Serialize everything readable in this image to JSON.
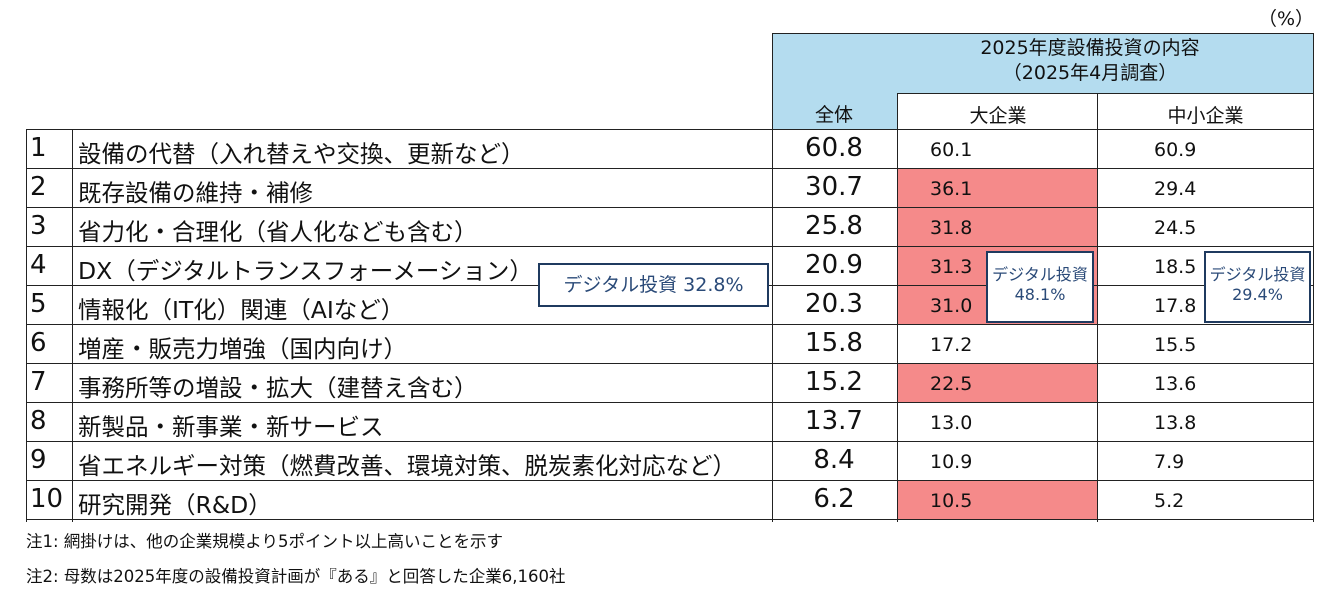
{
  "unit": "（%）",
  "header": {
    "title_line1": "2025年度設備投資の内容",
    "title_line2": "（2025年4月調査）",
    "col_total": "全体",
    "col_large": "大企業",
    "col_sme": "中小企業"
  },
  "rows": [
    {
      "no": "1",
      "label": "設備の代替（入れ替えや交換、更新など）",
      "total": "60.8",
      "large": "60.1",
      "sme": "60.9",
      "large_highlight": false
    },
    {
      "no": "2",
      "label": "既存設備の維持・補修",
      "total": "30.7",
      "large": "36.1",
      "sme": "29.4",
      "large_highlight": true
    },
    {
      "no": "3",
      "label": "省力化・合理化（省人化なども含む）",
      "total": "25.8",
      "large": "31.8",
      "sme": "24.5",
      "large_highlight": true
    },
    {
      "no": "4",
      "label": "DX（デジタルトランスフォーメーション）",
      "total": "20.9",
      "large": "31.3",
      "sme": "18.5",
      "large_highlight": true
    },
    {
      "no": "5",
      "label": "情報化（IT化）関連（AIなど）",
      "total": "20.3",
      "large": "31.0",
      "sme": "17.8",
      "large_highlight": true
    },
    {
      "no": "6",
      "label": "増産・販売力増強（国内向け）",
      "total": "15.8",
      "large": "17.2",
      "sme": "15.5",
      "large_highlight": false
    },
    {
      "no": "7",
      "label": "事務所等の増設・拡大（建替え含む）",
      "total": "15.2",
      "large": "22.5",
      "sme": "13.6",
      "large_highlight": true
    },
    {
      "no": "8",
      "label": "新製品・新事業・新サービス",
      "total": "13.7",
      "large": "13.0",
      "sme": "13.8",
      "large_highlight": false
    },
    {
      "no": "9",
      "label": "省エネルギー対策（燃費改善、環境対策、脱炭素化対応など）",
      "total": "8.4",
      "large": "10.9",
      "sme": "7.9",
      "large_highlight": false
    },
    {
      "no": "10",
      "label": "研究開発（R&D）",
      "total": "6.2",
      "large": "10.5",
      "sme": "5.2",
      "large_highlight": true
    }
  ],
  "callouts": {
    "total": "デジタル投資 32.8%",
    "large_line1": "デジタル投資",
    "large_line2": "48.1%",
    "sme_line1": "デジタル投資",
    "sme_line2": "29.4%"
  },
  "notes": {
    "note1": "注1:  網掛けは、他の企業規模より5ポイント以上高いことを示す",
    "note2": "注2:  母数は2025年度の設備投資計画が『ある』と回答した企業6,160社"
  },
  "colors": {
    "header_bg": "#b4dcef",
    "highlight": "#f58a8a",
    "callout_border": "#1f3a5f"
  }
}
